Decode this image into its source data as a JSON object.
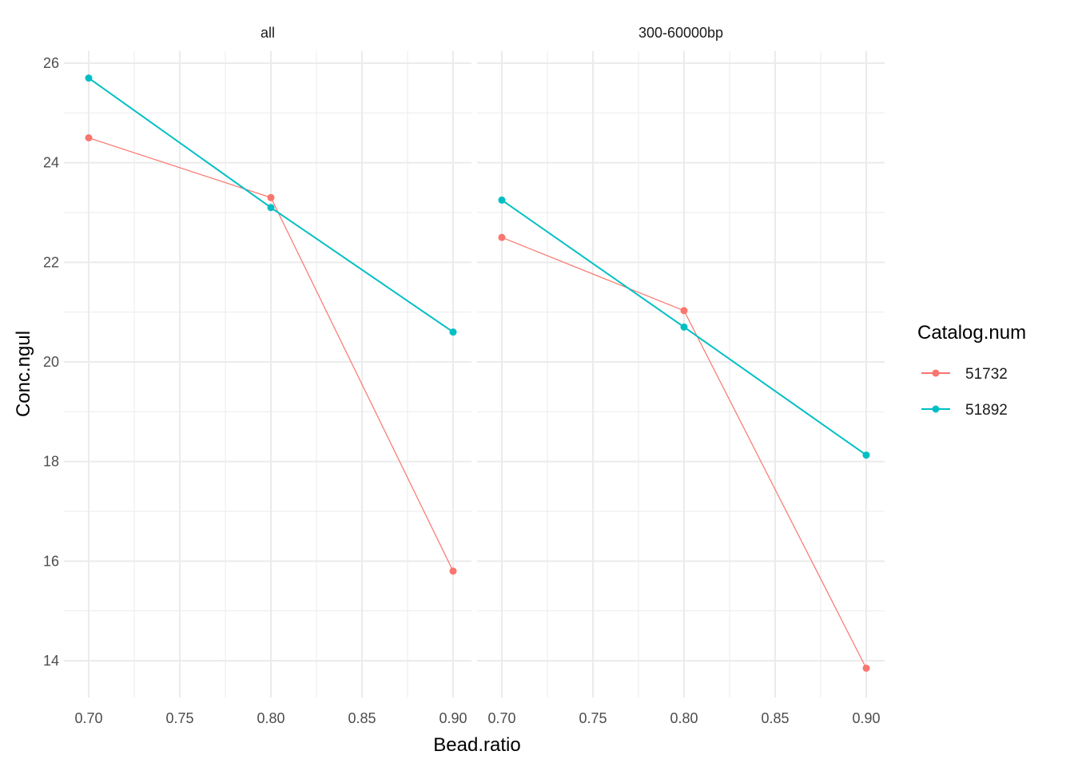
{
  "chart_data": {
    "type": "line",
    "facets": [
      {
        "title": "all",
        "series": [
          {
            "name": "51732",
            "x": [
              0.7,
              0.8,
              0.9
            ],
            "values": [
              24.5,
              23.3,
              15.8
            ]
          },
          {
            "name": "51892",
            "x": [
              0.7,
              0.8,
              0.9
            ],
            "values": [
              25.7,
              23.1,
              20.6
            ]
          }
        ]
      },
      {
        "title": "300-60000bp",
        "series": [
          {
            "name": "51732",
            "x": [
              0.7,
              0.8,
              0.9
            ],
            "values": [
              22.5,
              21.03,
              13.85
            ]
          },
          {
            "name": "51892",
            "x": [
              0.7,
              0.8,
              0.9
            ],
            "values": [
              23.25,
              20.7,
              18.13
            ]
          }
        ]
      }
    ],
    "xlabel": "Bead.ratio",
    "ylabel": "Conc.ngul",
    "xticks": [
      "0.70",
      "0.75",
      "0.80",
      "0.85",
      "0.90"
    ],
    "yticks": [
      "14",
      "16",
      "18",
      "20",
      "22",
      "24",
      "26"
    ],
    "xlim": [
      0.679,
      0.9
    ],
    "ylim": [
      13.3,
      26.3
    ],
    "grid": true,
    "legend": {
      "title": "Catalog.num",
      "placement": "right",
      "entries": [
        "51732",
        "51892"
      ]
    },
    "colors": {
      "51732": "#F8766D",
      "51892": "#00BFC4"
    }
  }
}
